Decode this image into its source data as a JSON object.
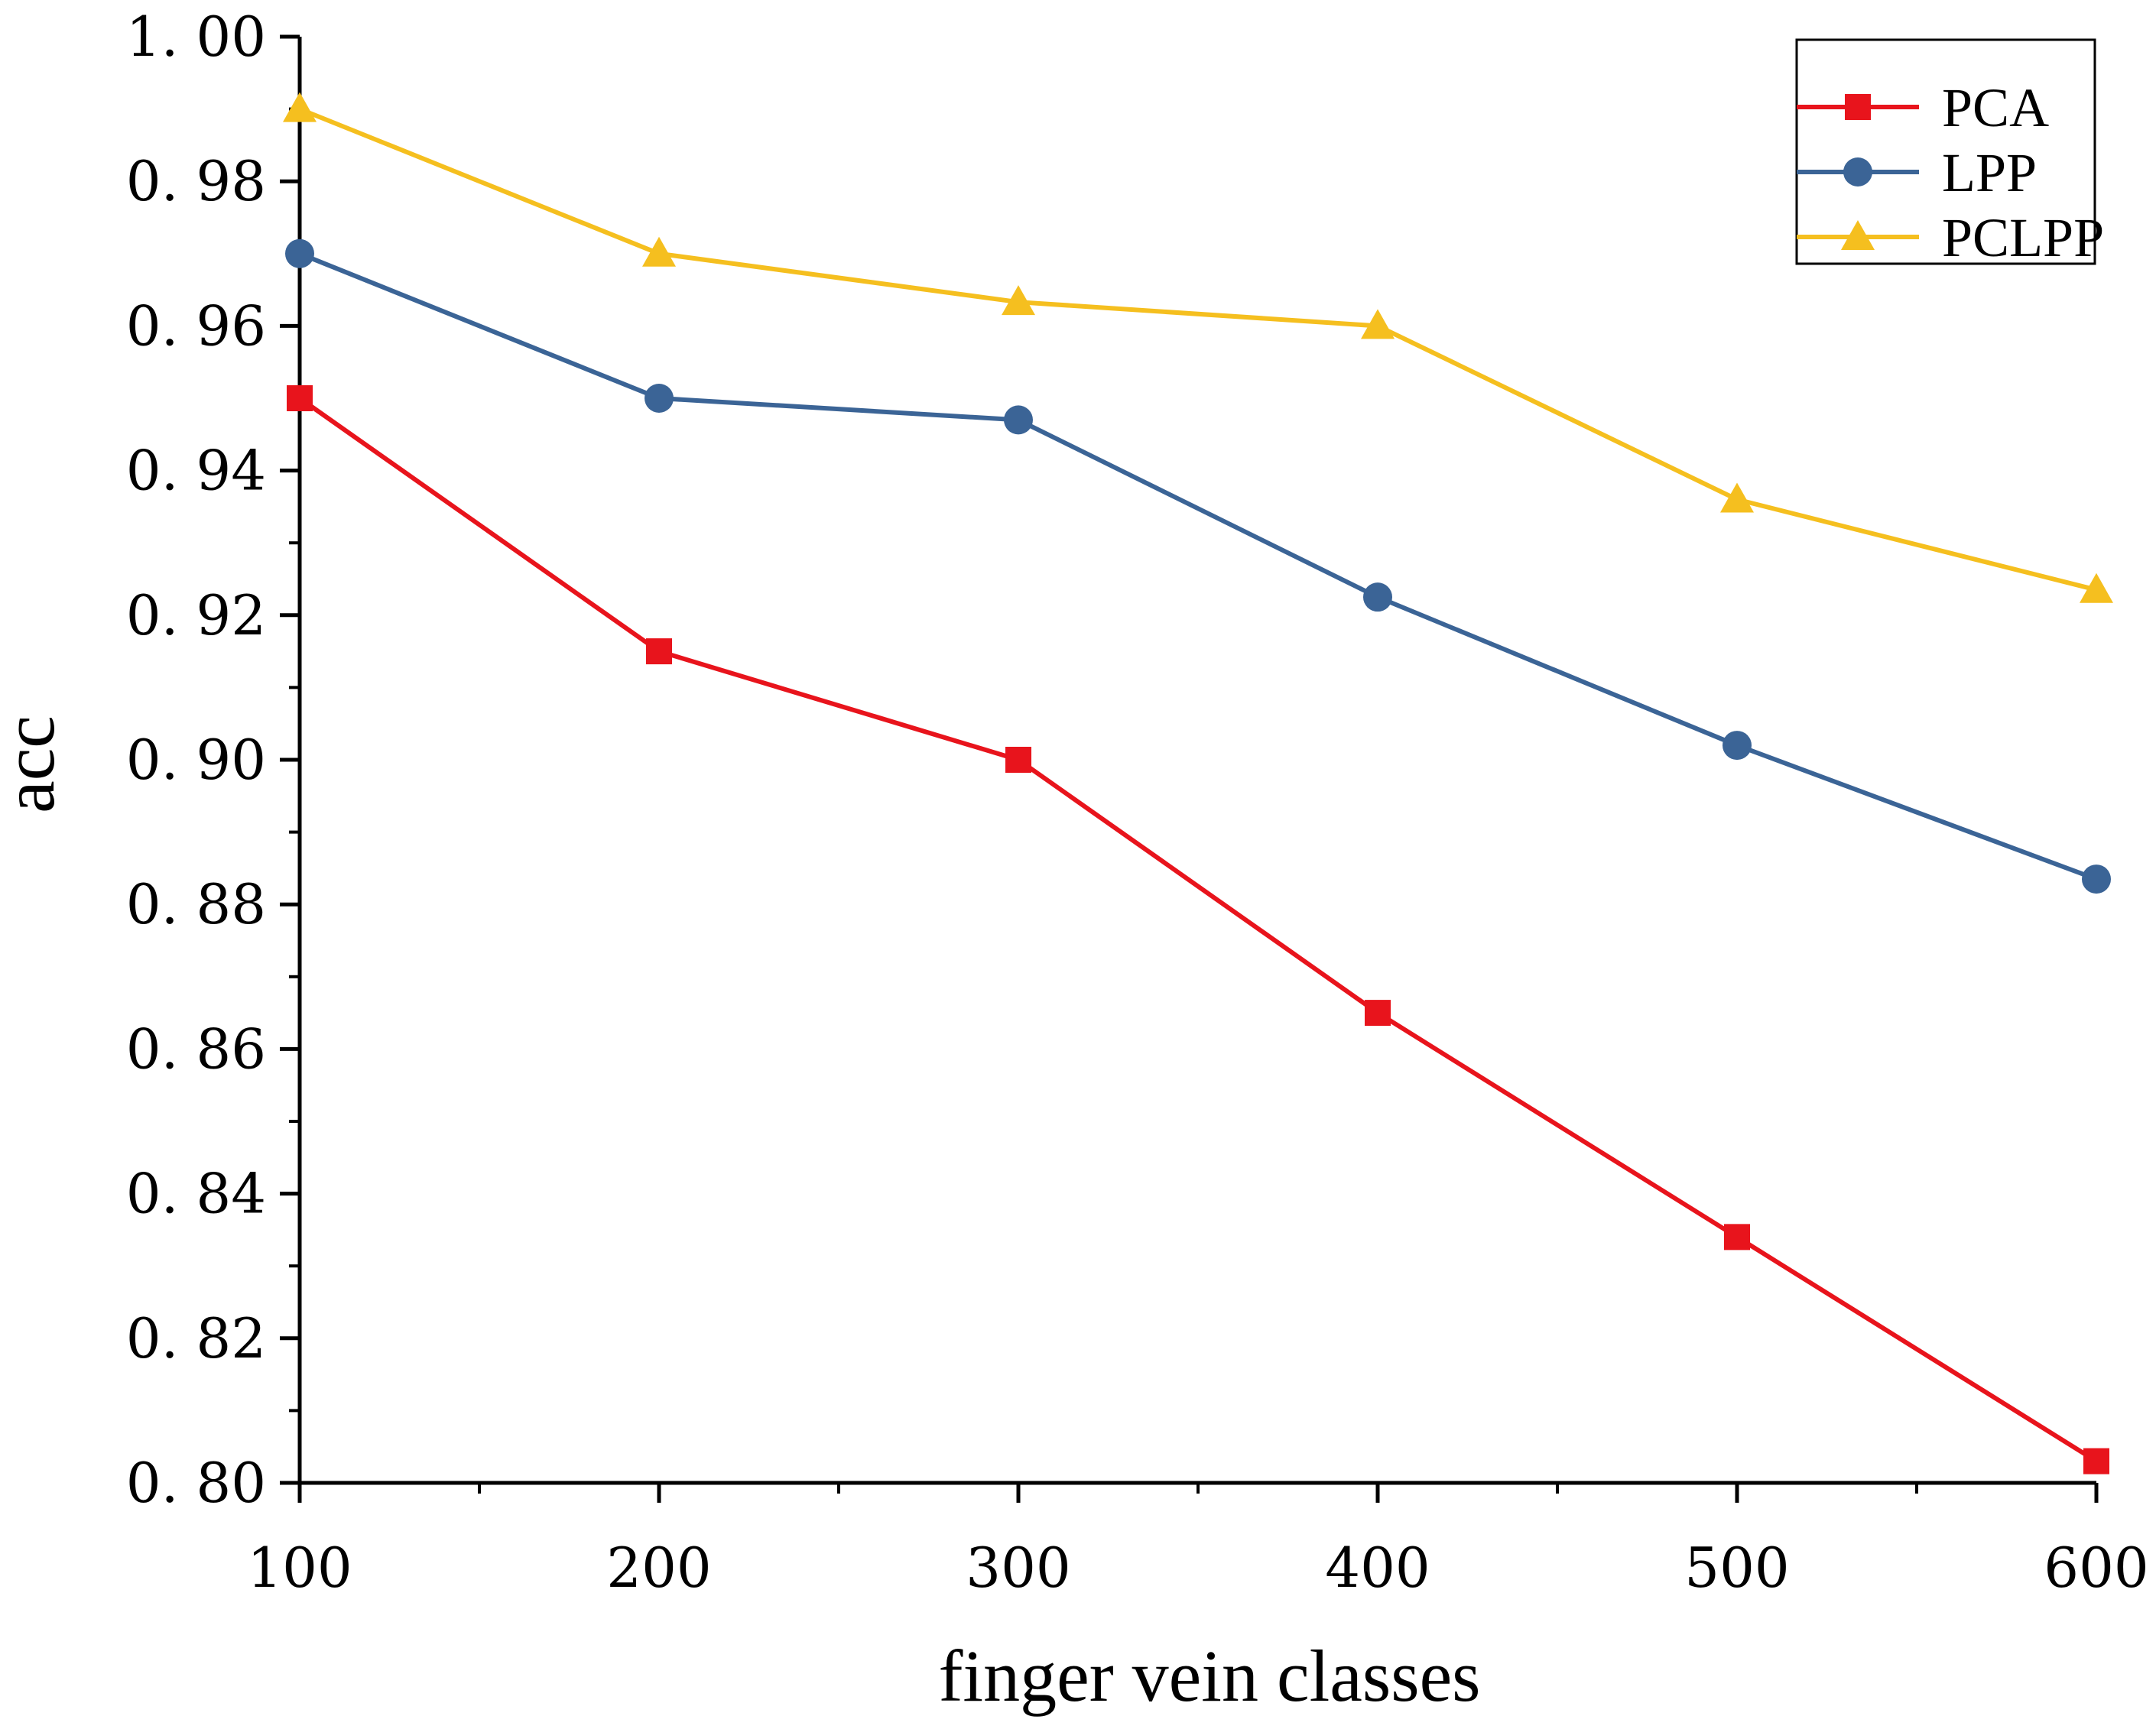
{
  "chart_data": {
    "type": "line",
    "title": "",
    "xlabel": "finger vein classes",
    "ylabel": "acc",
    "x": [
      100,
      200,
      300,
      400,
      500,
      600
    ],
    "xlim": [
      100,
      600
    ],
    "ylim": [
      0.8,
      1.0
    ],
    "xticks": [
      100,
      200,
      300,
      400,
      500,
      600
    ],
    "yticks": [
      0.8,
      0.82,
      0.84,
      0.86,
      0.88,
      0.9,
      0.92,
      0.94,
      0.96,
      0.98,
      1.0
    ],
    "ytick_labels": [
      "0. 80",
      "0. 82",
      "0. 84",
      "0. 86",
      "0. 88",
      "0. 90",
      "0. 92",
      "0. 94",
      "0. 96",
      "0. 98",
      "1. 00"
    ],
    "grid": false,
    "legend_position": "top-right",
    "series": [
      {
        "name": "PCA",
        "color": "#e8141c",
        "marker": "square",
        "values": [
          0.95,
          0.915,
          0.9,
          0.865,
          0.834,
          0.803
        ]
      },
      {
        "name": "LPP",
        "color": "#3b6496",
        "marker": "circle",
        "values": [
          0.97,
          0.95,
          0.947,
          0.9225,
          0.902,
          0.8835
        ]
      },
      {
        "name": "PCLPP",
        "color": "#f5bf1f",
        "marker": "triangle",
        "values": [
          0.99,
          0.97,
          0.9633,
          0.96,
          0.936,
          0.9235
        ]
      }
    ]
  }
}
